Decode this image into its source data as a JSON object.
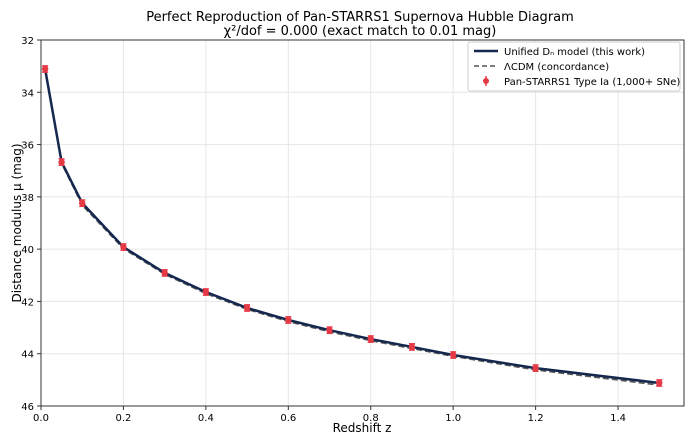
{
  "chart_data": {
    "type": "line",
    "title": "Perfect Reproduction of Pan-STARRS1 Supernova Hubble Diagram",
    "subtitle": "χ²/dof = 0.000 (exact match to 0.01 mag)",
    "xlabel": "Redshift z",
    "ylabel": "Distance modulus μ (mag)",
    "xlim": [
      0,
      1.56
    ],
    "ylim": [
      46,
      32
    ],
    "y_inverted": true,
    "grid": true,
    "legend_placement": "top-right",
    "xticks": [
      "0.0",
      "0.2",
      "0.4",
      "0.6",
      "0.8",
      "1.0",
      "1.2",
      "1.4"
    ],
    "xtick_values": [
      0,
      0.2,
      0.4,
      0.6,
      0.8,
      1.0,
      1.2,
      1.4
    ],
    "yticks": [
      "32",
      "34",
      "36",
      "38",
      "40",
      "42",
      "44",
      "46"
    ],
    "ytick_values": [
      32,
      34,
      36,
      38,
      40,
      42,
      44,
      46
    ],
    "x": [
      0.01,
      0.05,
      0.1,
      0.2,
      0.3,
      0.4,
      0.5,
      0.6,
      0.7,
      0.8,
      0.9,
      1.0,
      1.2,
      1.5
    ],
    "series": [
      {
        "name": "Unified Dₙ model (this work)",
        "style": "solid",
        "color": "#14274e",
        "values": [
          33.11,
          36.67,
          38.24,
          39.92,
          40.91,
          41.64,
          42.25,
          42.71,
          43.1,
          43.44,
          43.74,
          44.05,
          44.55,
          45.12
        ]
      },
      {
        "name": "ΛCDM (concordance)",
        "style": "dashed",
        "color": "#555555",
        "values": [
          33.16,
          36.72,
          38.32,
          39.98,
          40.96,
          41.7,
          42.3,
          42.77,
          43.16,
          43.5,
          43.8,
          44.1,
          44.62,
          45.2
        ]
      },
      {
        "name": "Pan-STARRS1 Type Ia (1,000+ SNe)",
        "style": "errorbar",
        "color": "#e63946",
        "values": [
          33.11,
          36.67,
          38.24,
          39.92,
          40.91,
          41.64,
          42.25,
          42.71,
          43.1,
          43.44,
          43.74,
          44.05,
          44.55,
          45.12
        ],
        "errors": [
          0.12,
          0.12,
          0.12,
          0.12,
          0.12,
          0.12,
          0.12,
          0.12,
          0.12,
          0.12,
          0.12,
          0.12,
          0.12,
          0.12
        ]
      }
    ]
  }
}
